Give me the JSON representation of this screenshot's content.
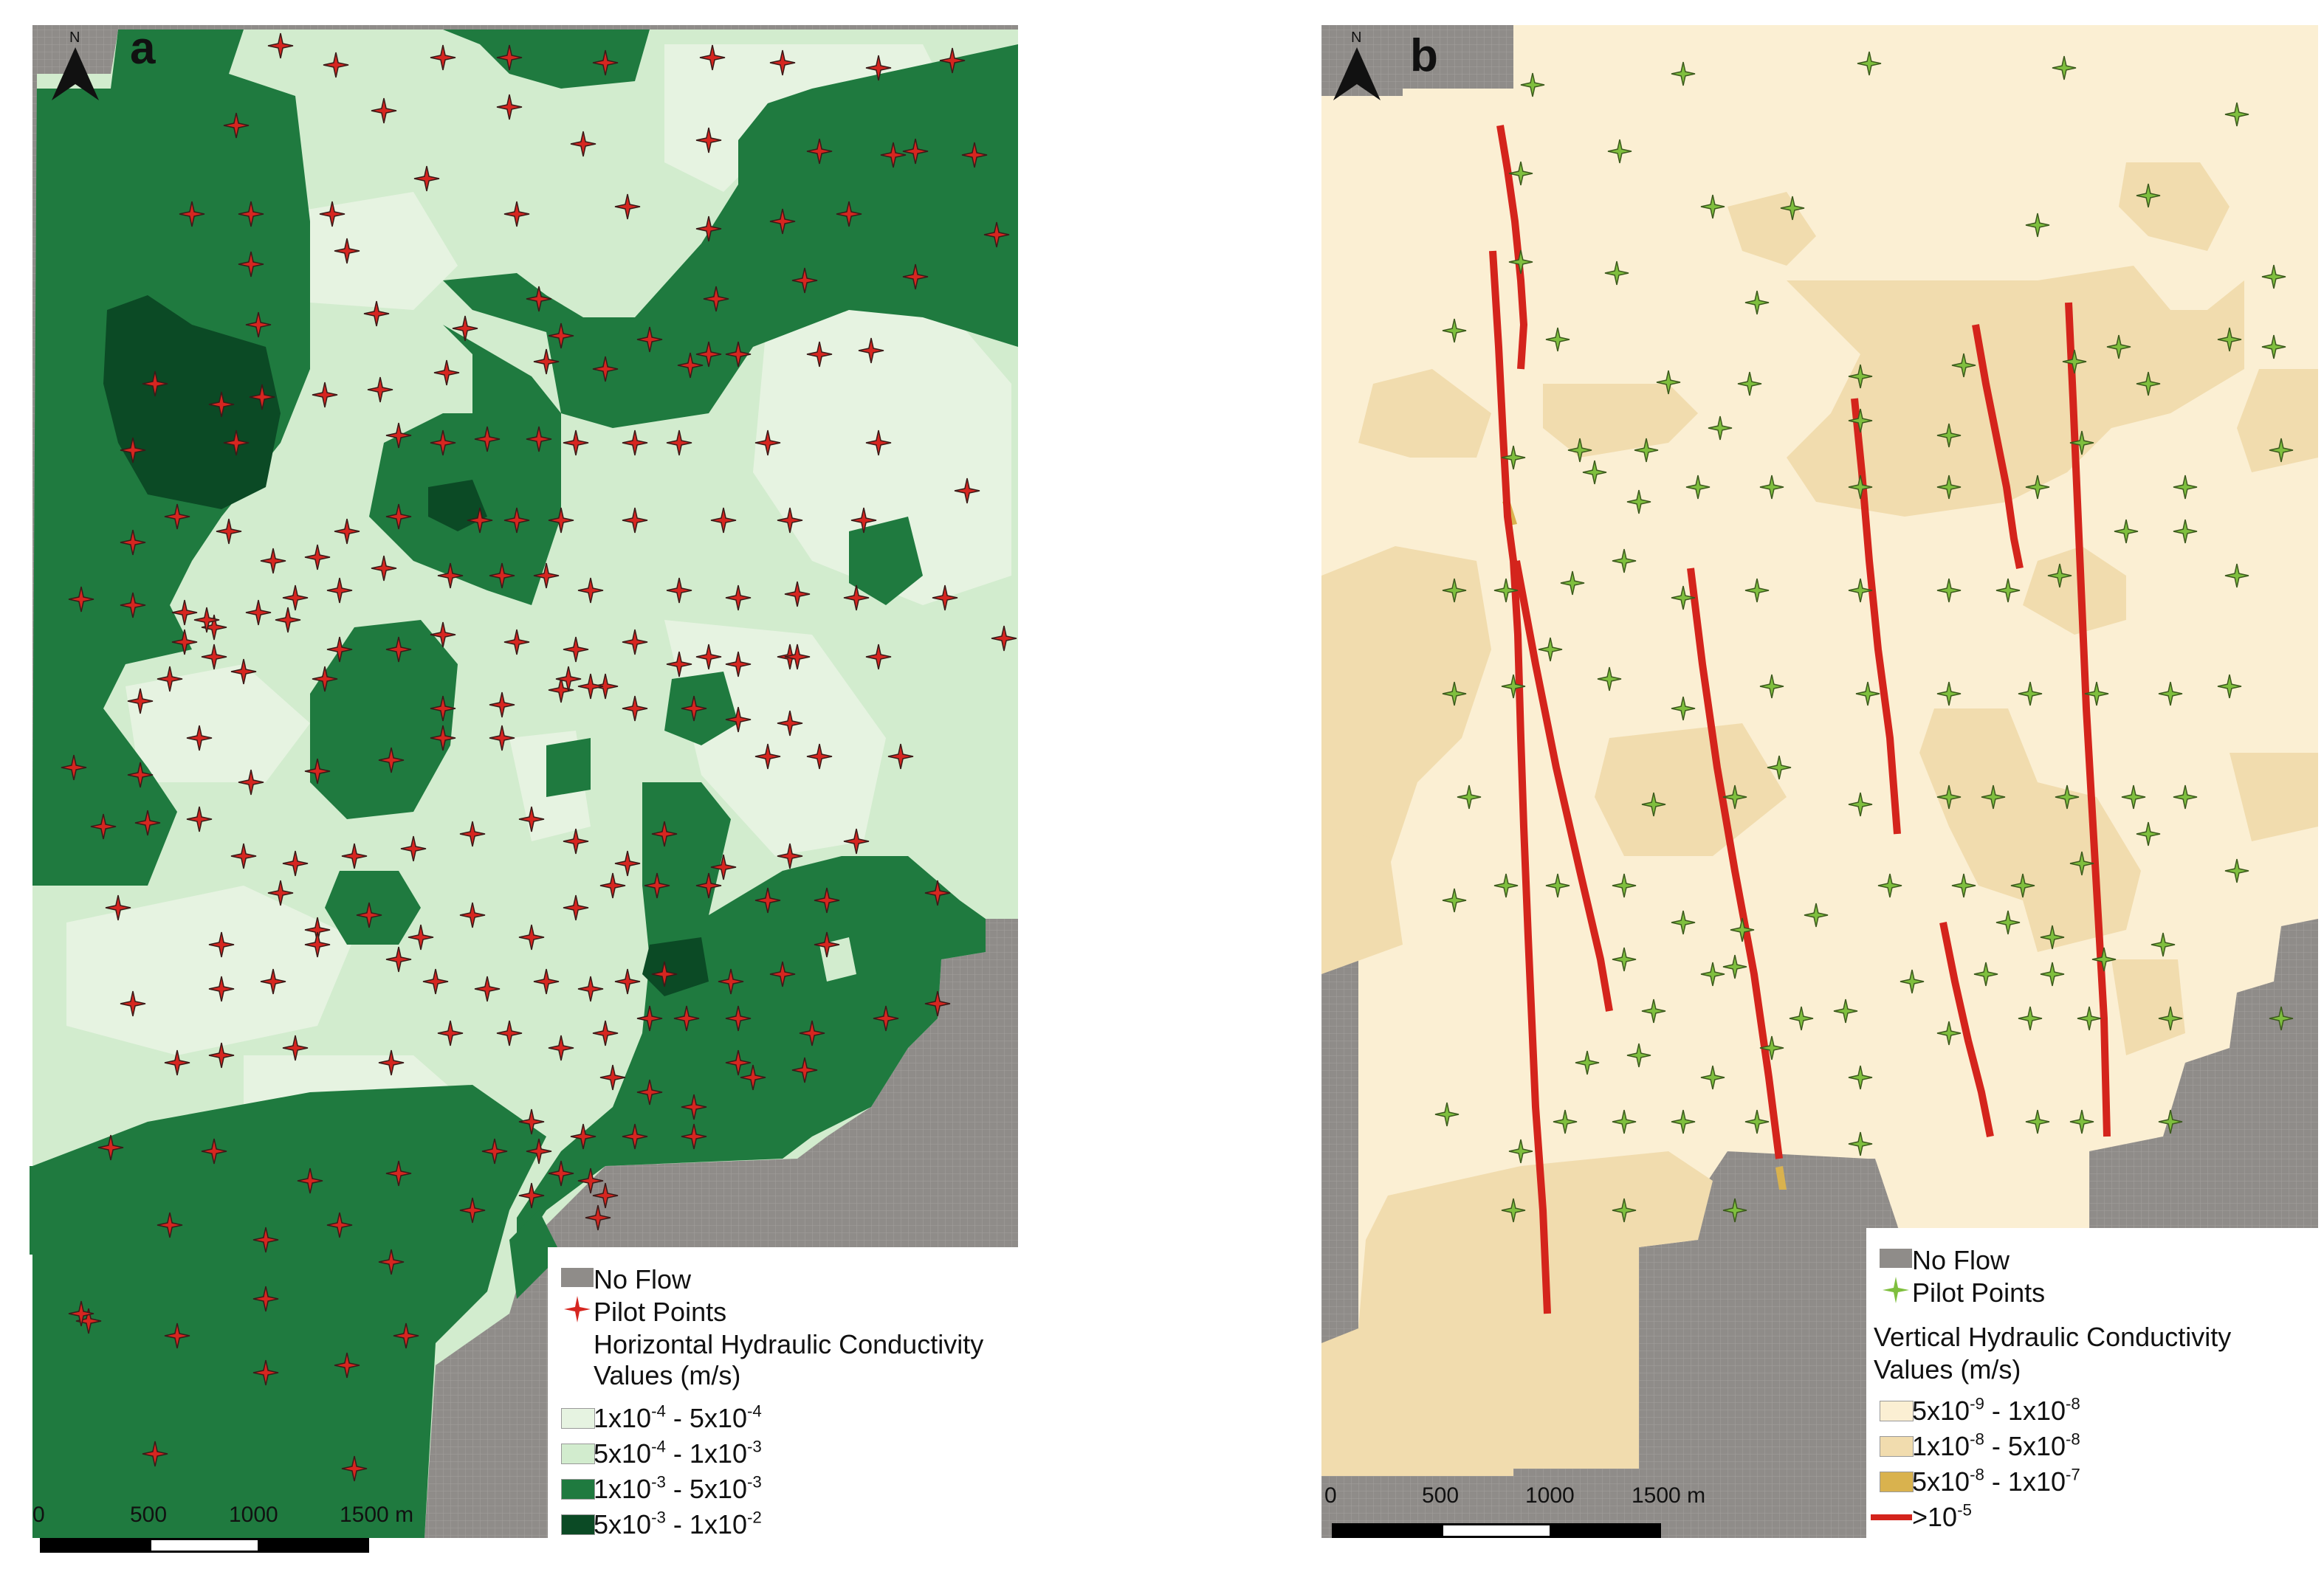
{
  "panel_a": {
    "letter": "a",
    "north": "N",
    "legend": {
      "no_flow": "No Flow",
      "pilot_points": "Pilot Points",
      "title_line1": "Horizontal Hydraulic Conductivity",
      "title_line2": "Values (m/s)",
      "classes": [
        {
          "base1": "1x10",
          "exp1": "-4",
          "sep": " - ",
          "base2": "5x10",
          "exp2": "-4",
          "color": "#e6f3e1"
        },
        {
          "base1": "5x10",
          "exp1": "-4",
          "sep": " - ",
          "base2": "1x10",
          "exp2": "-3",
          "color": "#d2ecce"
        },
        {
          "base1": "1x10",
          "exp1": "-3",
          "sep": " - ",
          "base2": "5x10",
          "exp2": "-3",
          "color": "#1f7a3f"
        },
        {
          "base1": "5x10",
          "exp1": "-3",
          "sep": " - ",
          "base2": "1x10",
          "exp2": "-2",
          "color": "#0b4a25"
        }
      ]
    },
    "scale": {
      "ticks": [
        "0",
        "500",
        "1000",
        "1500 m"
      ]
    }
  },
  "panel_b": {
    "letter": "b",
    "north": "N",
    "legend": {
      "no_flow": "No Flow",
      "pilot_points": "Pilot Points",
      "title_line1": "Vertical Hydraulic Conductivity",
      "title_line2": "Values (m/s)",
      "classes": [
        {
          "base1": "5x10",
          "exp1": "-9",
          "sep": " - ",
          "base2": "1x10",
          "exp2": "-8",
          "color": "#fbefd3"
        },
        {
          "base1": "1x10",
          "exp1": "-8",
          "sep": " - ",
          "base2": "5x10",
          "exp2": "-8",
          "color": "#f1dcae"
        },
        {
          "base1": "5x10",
          "exp1": "-8",
          "sep": " - ",
          "base2": "1x10",
          "exp2": "-7",
          "color": "#d9b24e"
        }
      ],
      "fault": {
        "base": ">10",
        "exp": "-5",
        "color": "#d4241c"
      }
    },
    "scale": {
      "ticks": [
        "0",
        "500",
        "1000",
        "1500 m"
      ]
    }
  },
  "colors": {
    "no_flow": "#8f8c89",
    "pilot_a": "#d62620",
    "pilot_b": "#7fbf3e"
  }
}
